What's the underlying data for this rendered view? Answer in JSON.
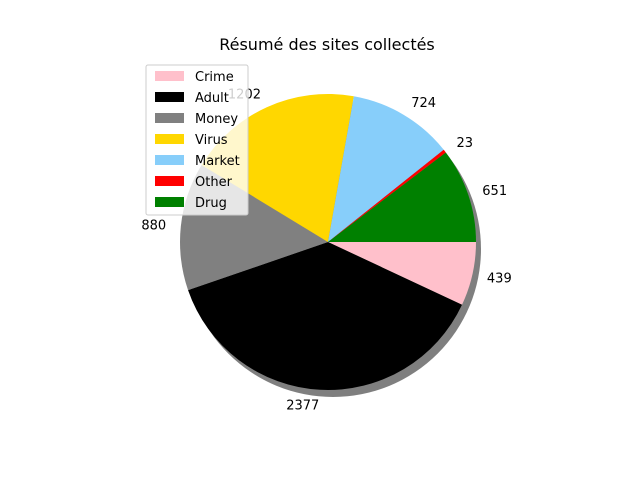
{
  "chart_data": {
    "type": "pie",
    "title": "Résumé des sites collectés",
    "categories": [
      "Crime",
      "Adult",
      "Money",
      "Virus",
      "Market",
      "Other",
      "Drug"
    ],
    "values": [
      439,
      2377,
      880,
      1202,
      724,
      23,
      651
    ],
    "colors": [
      "#ffc0cb",
      "#000000",
      "#808080",
      "#ffd700",
      "#87cefa",
      "#ff0000",
      "#008000"
    ],
    "start_angle_deg": 0,
    "direction": "clockwise",
    "shadow": true,
    "legend": {
      "placement": "upper-left",
      "entries": [
        "Crime",
        "Adult",
        "Money",
        "Virus",
        "Market",
        "Other",
        "Drug"
      ]
    }
  }
}
